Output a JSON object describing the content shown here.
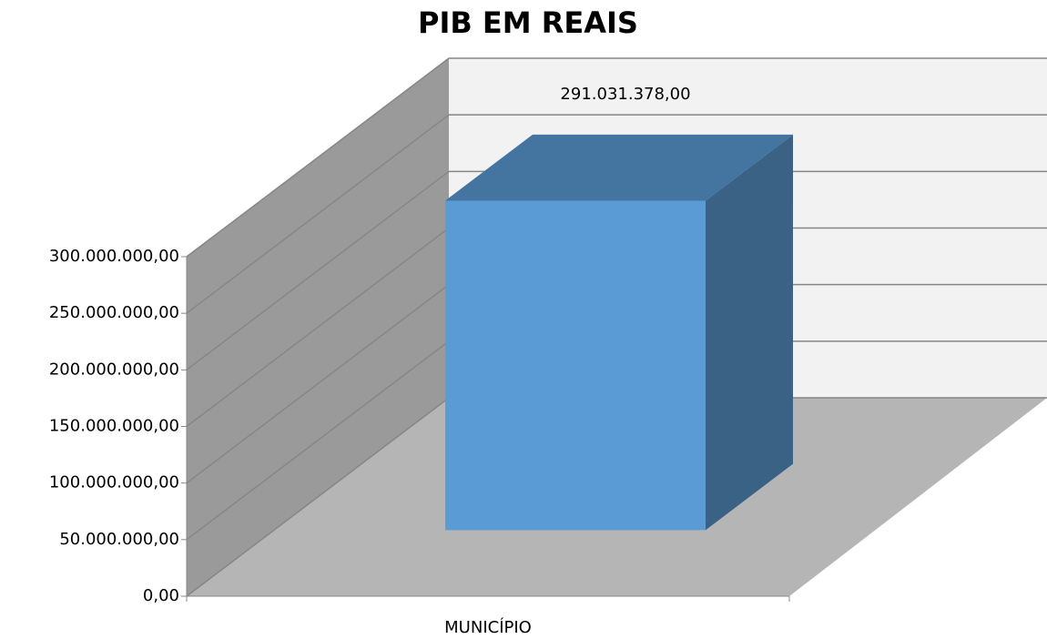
{
  "chart_data": {
    "type": "bar3d",
    "title": "PIB EM REAIS",
    "categories": [
      "MUNICÍPIO"
    ],
    "values": [
      291031378
    ],
    "value_labels": [
      "291.031.378,00"
    ],
    "color": "#5b9bd5",
    "ylim": [
      0,
      300000000
    ],
    "yticks": [
      {
        "value": 0,
        "label": "0,00"
      },
      {
        "value": 50000000,
        "label": "50.000.000,00"
      },
      {
        "value": 100000000,
        "label": "100.000.000,00"
      },
      {
        "value": 150000000,
        "label": "150.000.000,00"
      },
      {
        "value": 200000000,
        "label": "200.000.000,00"
      },
      {
        "value": 250000000,
        "label": "250.000.000,00"
      },
      {
        "value": 300000000,
        "label": "300.000.000,00"
      }
    ],
    "grid": true
  }
}
